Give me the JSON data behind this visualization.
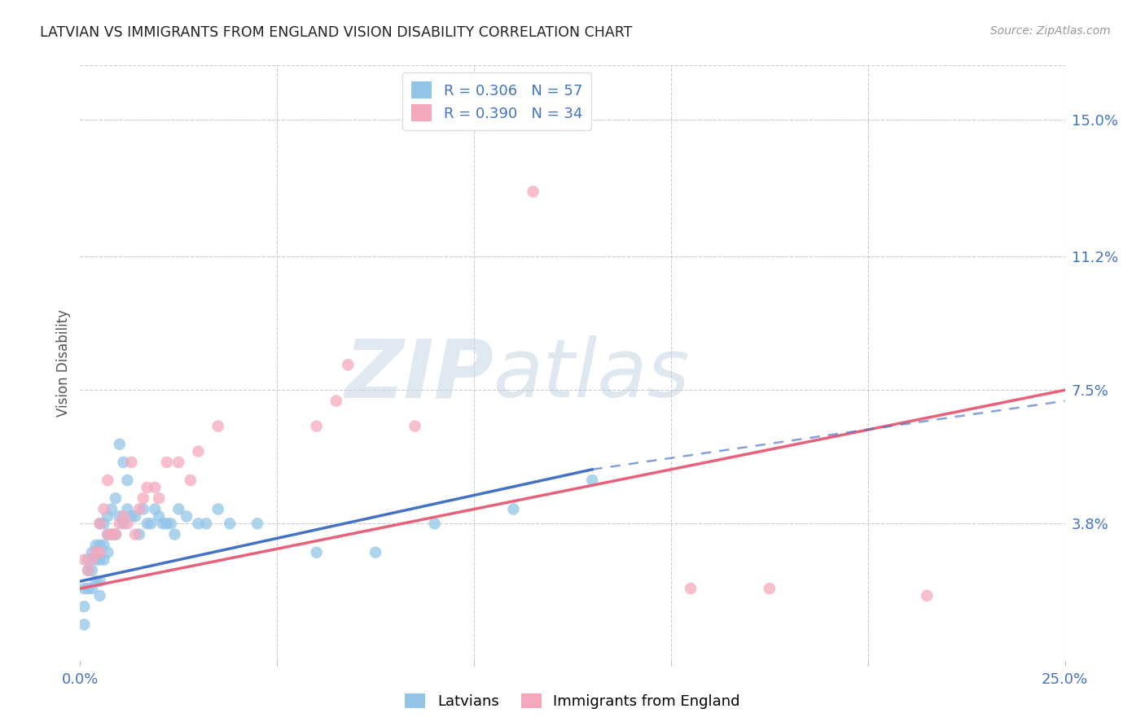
{
  "title": "LATVIAN VS IMMIGRANTS FROM ENGLAND VISION DISABILITY CORRELATION CHART",
  "source": "Source: ZipAtlas.com",
  "ylabel": "Vision Disability",
  "xlim": [
    0.0,
    0.25
  ],
  "ylim": [
    0.0,
    0.165
  ],
  "ytick_values": [
    0.038,
    0.075,
    0.112,
    0.15
  ],
  "ytick_labels": [
    "3.8%",
    "7.5%",
    "11.2%",
    "15.0%"
  ],
  "background_color": "#ffffff",
  "watermark_zip": "ZIP",
  "watermark_atlas": "atlas",
  "legend_R1": "R = 0.306",
  "legend_N1": "N = 57",
  "legend_R2": "R = 0.390",
  "legend_N2": "N = 34",
  "color_latvian": "#92C5E8",
  "color_england": "#F5A8BC",
  "color_latvian_line": "#4472C4",
  "color_england_line": "#E8607A",
  "color_blue_text": "#4472C4",
  "grid_color": "#cccccc",
  "latvian_x": [
    0.001,
    0.001,
    0.001,
    0.002,
    0.002,
    0.002,
    0.003,
    0.003,
    0.003,
    0.004,
    0.004,
    0.004,
    0.005,
    0.005,
    0.005,
    0.005,
    0.005,
    0.006,
    0.006,
    0.006,
    0.007,
    0.007,
    0.007,
    0.008,
    0.008,
    0.009,
    0.009,
    0.01,
    0.01,
    0.011,
    0.011,
    0.012,
    0.012,
    0.013,
    0.014,
    0.015,
    0.016,
    0.017,
    0.018,
    0.019,
    0.02,
    0.021,
    0.022,
    0.023,
    0.024,
    0.025,
    0.027,
    0.03,
    0.032,
    0.035,
    0.038,
    0.045,
    0.06,
    0.075,
    0.09,
    0.11,
    0.13
  ],
  "latvian_y": [
    0.01,
    0.015,
    0.02,
    0.02,
    0.025,
    0.028,
    0.02,
    0.025,
    0.03,
    0.022,
    0.028,
    0.032,
    0.018,
    0.022,
    0.028,
    0.032,
    0.038,
    0.028,
    0.032,
    0.038,
    0.03,
    0.035,
    0.04,
    0.035,
    0.042,
    0.035,
    0.045,
    0.04,
    0.06,
    0.038,
    0.055,
    0.042,
    0.05,
    0.04,
    0.04,
    0.035,
    0.042,
    0.038,
    0.038,
    0.042,
    0.04,
    0.038,
    0.038,
    0.038,
    0.035,
    0.042,
    0.04,
    0.038,
    0.038,
    0.042,
    0.038,
    0.038,
    0.03,
    0.03,
    0.038,
    0.042,
    0.05
  ],
  "england_x": [
    0.001,
    0.002,
    0.003,
    0.004,
    0.005,
    0.005,
    0.006,
    0.007,
    0.007,
    0.008,
    0.009,
    0.01,
    0.011,
    0.012,
    0.013,
    0.014,
    0.015,
    0.016,
    0.017,
    0.019,
    0.02,
    0.022,
    0.025,
    0.028,
    0.03,
    0.035,
    0.06,
    0.065,
    0.068,
    0.085,
    0.115,
    0.155,
    0.175,
    0.215
  ],
  "england_y": [
    0.028,
    0.025,
    0.028,
    0.03,
    0.03,
    0.038,
    0.042,
    0.035,
    0.05,
    0.035,
    0.035,
    0.038,
    0.04,
    0.038,
    0.055,
    0.035,
    0.042,
    0.045,
    0.048,
    0.048,
    0.045,
    0.055,
    0.055,
    0.05,
    0.058,
    0.065,
    0.065,
    0.072,
    0.082,
    0.065,
    0.13,
    0.02,
    0.02,
    0.018
  ],
  "latvian_line_x0": 0.0,
  "latvian_line_y0": 0.022,
  "latvian_line_x1": 0.13,
  "latvian_line_y1": 0.053,
  "latvian_line_x2": 0.25,
  "latvian_line_y2": 0.072,
  "england_line_x0": 0.0,
  "england_line_y0": 0.02,
  "england_line_x1": 0.25,
  "england_line_y1": 0.075
}
